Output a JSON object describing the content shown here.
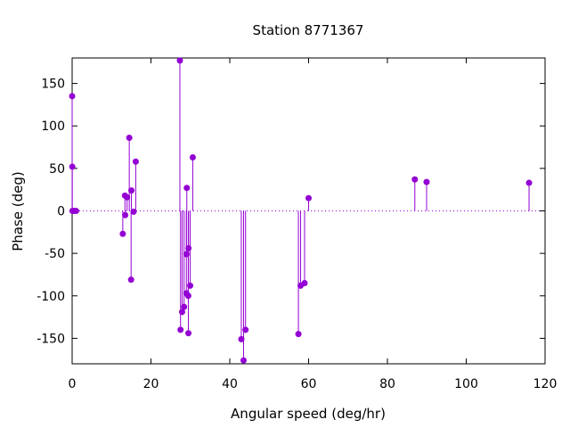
{
  "chart_data": {
    "type": "stem",
    "title": "Station 8771367",
    "xlabel": "Angular speed (deg/hr)",
    "ylabel": "Phase (deg)",
    "xlim": [
      0,
      120
    ],
    "ylim": [
      -180,
      180
    ],
    "xticks": [
      0,
      20,
      40,
      60,
      80,
      100,
      120
    ],
    "yticks": [
      -150,
      -100,
      -50,
      0,
      50,
      100,
      150
    ],
    "grid": false,
    "zero_line": true,
    "color": "#9400d3",
    "points": [
      {
        "x": 0.0,
        "y": 135
      },
      {
        "x": 0.04,
        "y": 52
      },
      {
        "x": 0.08,
        "y": 0
      },
      {
        "x": 0.5,
        "y": 0
      },
      {
        "x": 1.0,
        "y": 0
      },
      {
        "x": 12.85,
        "y": -27
      },
      {
        "x": 13.4,
        "y": 18
      },
      {
        "x": 13.47,
        "y": -5
      },
      {
        "x": 13.94,
        "y": 16
      },
      {
        "x": 14.5,
        "y": 86
      },
      {
        "x": 14.96,
        "y": -81
      },
      {
        "x": 15.04,
        "y": 24
      },
      {
        "x": 15.59,
        "y": -1
      },
      {
        "x": 16.14,
        "y": 58
      },
      {
        "x": 27.34,
        "y": 177
      },
      {
        "x": 27.5,
        "y": -140
      },
      {
        "x": 27.9,
        "y": -119
      },
      {
        "x": 28.4,
        "y": -113
      },
      {
        "x": 28.98,
        "y": -97
      },
      {
        "x": 29.0,
        "y": -51
      },
      {
        "x": 29.1,
        "y": 27
      },
      {
        "x": 29.46,
        "y": -100
      },
      {
        "x": 29.5,
        "y": -144
      },
      {
        "x": 29.53,
        "y": -44
      },
      {
        "x": 29.96,
        "y": -88
      },
      {
        "x": 30.6,
        "y": 63
      },
      {
        "x": 42.93,
        "y": -151
      },
      {
        "x": 43.5,
        "y": -176
      },
      {
        "x": 44.0,
        "y": -140
      },
      {
        "x": 57.42,
        "y": -145
      },
      {
        "x": 57.97,
        "y": -88
      },
      {
        "x": 58.98,
        "y": -85
      },
      {
        "x": 60.0,
        "y": 15
      },
      {
        "x": 86.95,
        "y": 37
      },
      {
        "x": 89.94,
        "y": 34
      },
      {
        "x": 115.94,
        "y": 33
      }
    ]
  }
}
